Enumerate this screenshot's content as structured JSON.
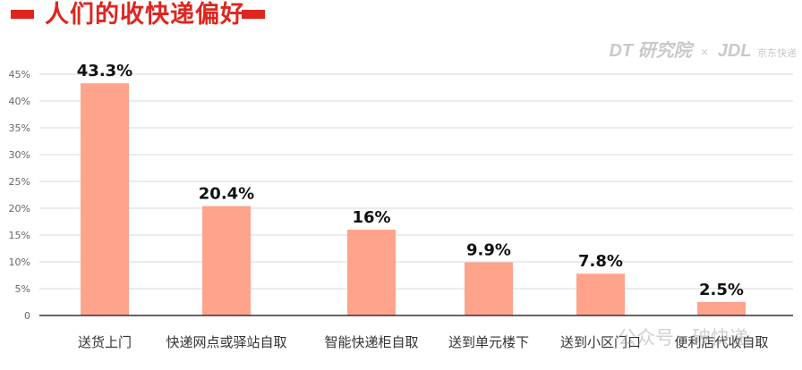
{
  "title": "人们的收快递偏好",
  "logo": {
    "dt": "DT 研究院",
    "separator": "×",
    "jdl": "JDL",
    "jdl_sub": "京东快递"
  },
  "watermark": "公众号 · 破快递",
  "colors": {
    "bar": "#ffa38a",
    "title": "#e0251e",
    "grid": "#d9d9d9",
    "axis": "#333333"
  },
  "chart_data": {
    "type": "bar",
    "categories": [
      "送货上门",
      "快递网点或驿站自取",
      "智能快递柜自取",
      "送到单元楼下",
      "送到小区门口",
      "便利店代收自取"
    ],
    "values": [
      43.3,
      20.4,
      16,
      9.9,
      7.8,
      2.5
    ],
    "value_labels": [
      "43.3%",
      "20.4%",
      "16%",
      "9.9%",
      "7.8%",
      "2.5%"
    ],
    "yticks": [
      "0",
      "5%",
      "10%",
      "15%",
      "20%",
      "25%",
      "30%",
      "35%",
      "40%",
      "45%"
    ],
    "ylim": [
      0,
      45
    ],
    "grid": true
  }
}
